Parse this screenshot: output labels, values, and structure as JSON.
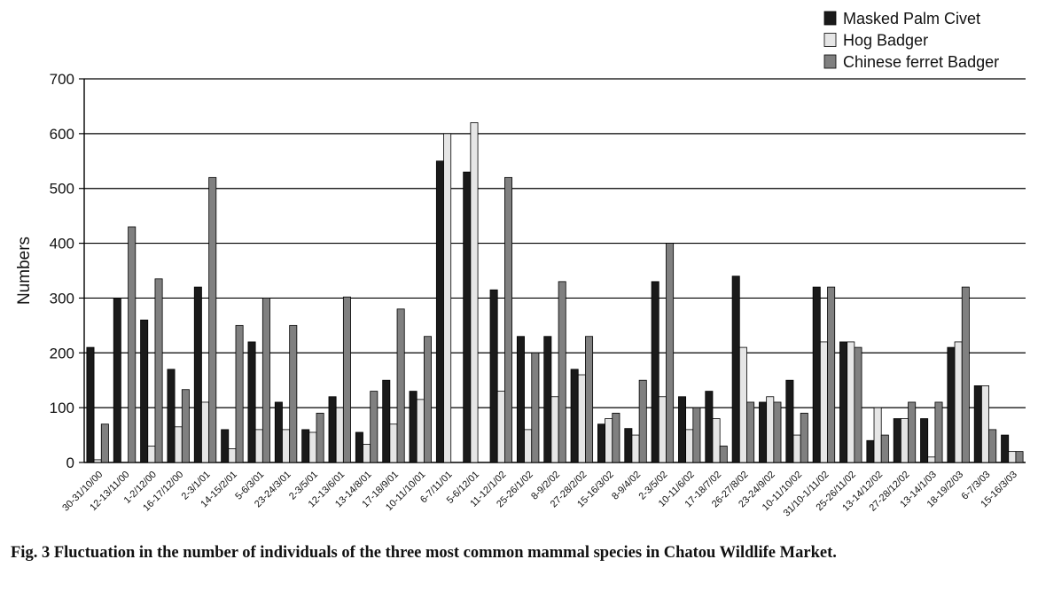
{
  "caption": "Fig. 3  Fluctuation in the number of individuals of the three most common mammal species in Chatou Wildlife Market.",
  "chart_data": {
    "type": "bar",
    "title": "",
    "xlabel": "",
    "ylabel": "Numbers",
    "ylim": [
      0,
      700
    ],
    "yticks": [
      0,
      100,
      200,
      300,
      400,
      500,
      600,
      700
    ],
    "grid": "horizontal",
    "legend_position": "top-right",
    "categories": [
      "30-31/10/00",
      "12-13/11/00",
      "1-2/12/00",
      "16-17/12/00",
      "2-3/1/01",
      "14-15/2/01",
      "5-6/3/01",
      "23-24/3/01",
      "2-3/5/01",
      "12-13/6/01",
      "13-14/8/01",
      "17-18/9/01",
      "10-11/10/01",
      "6-7/11/01",
      "5-6/12/01",
      "11-12/1/02",
      "25-26/1/02",
      "8-9/2/02",
      "27-28/2/02",
      "15-16/3/02",
      "8-9/4/02",
      "2-3/5/02",
      "10-11/6/02",
      "17-18/7/02",
      "26-27/8/02",
      "23-24/9/02",
      "10-11/10/02",
      "31/10-1/11/02",
      "25-26/11/02",
      "13-14/12/02",
      "27-28/12/02",
      "13-14/1/03",
      "18-19/2/03",
      "6-7/3/03",
      "15-16/3/03"
    ],
    "series": [
      {
        "name": "Masked Palm Civet",
        "color": "#1a1a1a",
        "values": [
          210,
          300,
          260,
          170,
          320,
          60,
          220,
          110,
          60,
          120,
          55,
          150,
          130,
          550,
          530,
          315,
          230,
          230,
          170,
          70,
          62,
          330,
          120,
          130,
          340,
          110,
          150,
          320,
          220,
          40,
          80,
          80,
          210,
          140,
          50
        ]
      },
      {
        "name": "Hog Badger",
        "color": "#e6e6e6",
        "values": [
          5,
          0,
          30,
          65,
          110,
          25,
          60,
          60,
          55,
          100,
          33,
          70,
          115,
          600,
          620,
          130,
          60,
          120,
          160,
          80,
          50,
          120,
          60,
          80,
          210,
          120,
          50,
          220,
          220,
          100,
          80,
          10,
          220,
          140,
          20
        ]
      },
      {
        "name": "Chinese ferret Badger",
        "color": "#808080",
        "values": [
          70,
          430,
          335,
          133,
          520,
          250,
          300,
          250,
          90,
          302,
          130,
          280,
          230,
          0,
          0,
          520,
          200,
          330,
          230,
          90,
          150,
          400,
          100,
          30,
          110,
          110,
          90,
          320,
          210,
          50,
          110,
          110,
          320,
          60,
          20
        ]
      }
    ]
  }
}
